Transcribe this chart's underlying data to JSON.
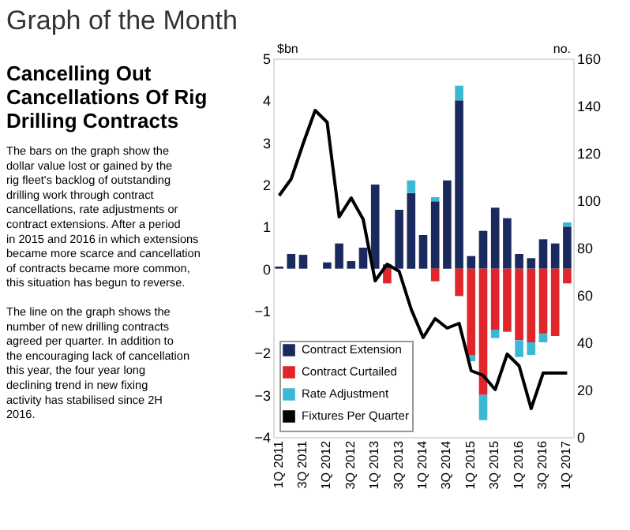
{
  "chart_data": {
    "type": "bar",
    "title": "Graph of the Month",
    "subtitle": "Cancelling Out Cancellations Of Rig Drilling Contracts",
    "annotations": [
      "The bars on the graph show the dollar value lost or gained by the rig fleet's backlog of outstanding drilling work through contract cancellations, rate adjustments or contract extensions. After a period in 2015 and 2016 in which extensions became more scarce and cancellation of contracts became more common, this situation has begun to reverse.",
      "The line on the graph shows the number of new drilling contracts agreed per quarter. In addition to the encouraging lack of cancellation this year, the four year long declining trend in new fixing activity has stabilised since 2H 2016."
    ],
    "ylabel": "$bn",
    "y2label": "no.",
    "categories": [
      "1Q 2011",
      null,
      "3Q 2011",
      null,
      "1Q 2012",
      null,
      "3Q 2012",
      null,
      "1Q 2013",
      null,
      "3Q 2013",
      null,
      "1Q 2014",
      null,
      "3Q 2014",
      null,
      "1Q 2015",
      null,
      "3Q 2015",
      null,
      "1Q 2016",
      null,
      "3Q 2016",
      null,
      "1Q 2017"
    ],
    "stacked": true,
    "series": [
      {
        "name": "Contract Extension",
        "type": "bar",
        "color": "#1b2a5e",
        "values": [
          0.05,
          0.35,
          0.33,
          null,
          0.15,
          0.6,
          0.18,
          0.5,
          2.0,
          0.1,
          1.4,
          1.8,
          0.8,
          1.6,
          2.1,
          4.0,
          0.3,
          0.9,
          1.45,
          1.2,
          0.35,
          0.25,
          0.7,
          0.6,
          1.0
        ]
      },
      {
        "name": "Contract Curtailed",
        "type": "bar",
        "color": "#e0262b",
        "values": [
          null,
          null,
          null,
          null,
          null,
          null,
          null,
          null,
          null,
          -0.35,
          null,
          null,
          null,
          -0.3,
          null,
          -0.65,
          -2.05,
          -3.0,
          -1.45,
          -1.5,
          -1.7,
          -1.75,
          -1.55,
          -1.6,
          -0.35
        ]
      },
      {
        "name": "Rate Adjustment",
        "type": "bar",
        "color": "#3bb8d6",
        "values": [
          null,
          null,
          null,
          null,
          null,
          null,
          null,
          null,
          null,
          null,
          null,
          0.3,
          null,
          0.1,
          null,
          0.35,
          -0.15,
          -0.6,
          -0.2,
          null,
          -0.4,
          -0.3,
          -0.2,
          null,
          0.1
        ]
      },
      {
        "name": "Fixtures Per Quarter",
        "type": "line",
        "axis": "y2",
        "color": "#000000",
        "values": [
          102,
          109,
          124,
          138,
          133,
          93,
          101,
          92,
          66,
          73,
          70,
          54,
          42,
          50,
          46,
          48,
          28,
          26,
          20,
          35,
          30,
          12,
          27,
          27,
          27
        ]
      }
    ],
    "ylim": [
      -4,
      5
    ],
    "yticks": [
      -4,
      -3,
      -2,
      -1,
      0,
      1,
      2,
      3,
      4,
      5
    ],
    "y2lim": [
      0,
      160
    ],
    "y2ticks": [
      0,
      20,
      40,
      60,
      80,
      100,
      120,
      140,
      160
    ],
    "legend": "bottom left",
    "grid": false
  }
}
